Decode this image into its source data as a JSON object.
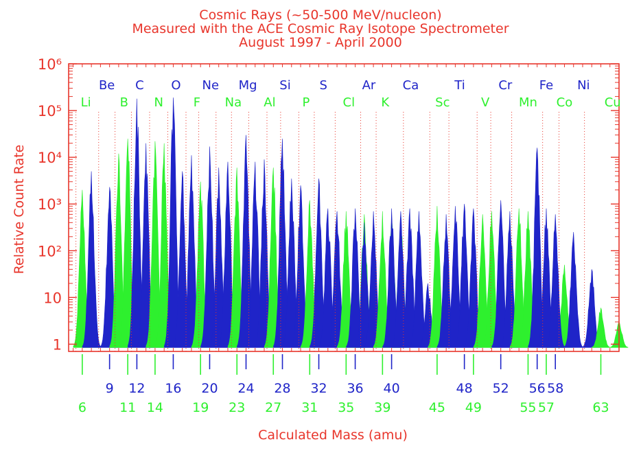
{
  "chart_data": {
    "type": "bar",
    "title_lines": [
      "Cosmic Rays (~50-500 MeV/nucleon)",
      "Measured with the ACE Cosmic Ray Isotope Spectrometer",
      "August 1997 - April 2000"
    ],
    "xlabel": "Calculated Mass (amu)",
    "ylabel": "Relative Count Rate",
    "xlim": [
      4.5,
      65
    ],
    "ylim": [
      0.7,
      1000000
    ],
    "y_scale": "log",
    "y_ticks": [
      {
        "value": 1,
        "label": "1"
      },
      {
        "value": 10,
        "label": "10"
      },
      {
        "value": 100,
        "label": "10²"
      },
      {
        "value": 1000,
        "label": "10³"
      },
      {
        "value": 10000,
        "label": "10⁴"
      },
      {
        "value": 100000,
        "label": "10⁵"
      },
      {
        "value": 1000000,
        "label": "10⁶"
      }
    ],
    "colors": {
      "axis": "#e8352b",
      "blue": "#1f24c8",
      "green": "#2ef02e",
      "divider": "#e8352b"
    },
    "dividers": [
      5.3,
      7.8,
      9.6,
      11.4,
      13.4,
      15.4,
      17.4,
      18.8,
      20.7,
      22.4,
      24.3,
      26.3,
      27.8,
      29.8,
      31.5,
      33.8,
      36.6,
      38.3,
      41.3,
      44.2,
      46.3,
      49.4,
      50.9,
      53.2,
      56.6,
      58.4,
      61.2
    ],
    "x_ticks_blue": [
      {
        "value": 9,
        "label": "9"
      },
      {
        "value": 12,
        "label": "12"
      },
      {
        "value": 16,
        "label": "16"
      },
      {
        "value": 20,
        "label": "20"
      },
      {
        "value": 24,
        "label": "24"
      },
      {
        "value": 28,
        "label": "28"
      },
      {
        "value": 32,
        "label": "32"
      },
      {
        "value": 36,
        "label": "36"
      },
      {
        "value": 40,
        "label": "40"
      },
      {
        "value": 48,
        "label": "48"
      },
      {
        "value": 52,
        "label": "52"
      },
      {
        "value": 56,
        "label": "56"
      },
      {
        "value": 58,
        "label": "58"
      }
    ],
    "x_ticks_green": [
      {
        "value": 6,
        "label": "6"
      },
      {
        "value": 11,
        "label": "11"
      },
      {
        "value": 14,
        "label": "14"
      },
      {
        "value": 19,
        "label": "19"
      },
      {
        "value": 23,
        "label": "23"
      },
      {
        "value": 27,
        "label": "27"
      },
      {
        "value": 31,
        "label": "31"
      },
      {
        "value": 35,
        "label": "35"
      },
      {
        "value": 39,
        "label": "39"
      },
      {
        "value": 45,
        "label": "45"
      },
      {
        "value": 49,
        "label": "49"
      },
      {
        "value": 55,
        "label": "55"
      },
      {
        "value": 57,
        "label": "57"
      },
      {
        "value": 63,
        "label": "63"
      }
    ],
    "elements": [
      {
        "symbol": "Li",
        "color": "green",
        "label_mass": 6.4,
        "row": 2,
        "isotopes": [
          {
            "mass": 6,
            "peak": 2000
          },
          {
            "mass": 7,
            "peak": 1800
          }
        ]
      },
      {
        "symbol": "Be",
        "color": "blue",
        "label_mass": 8.7,
        "row": 1,
        "isotopes": [
          {
            "mass": 7,
            "peak": 5000
          },
          {
            "mass": 9,
            "peak": 2300
          },
          {
            "mass": 10,
            "peak": 500
          }
        ]
      },
      {
        "symbol": "B",
        "color": "green",
        "label_mass": 10.6,
        "row": 2,
        "isotopes": [
          {
            "mass": 10,
            "peak": 12000
          },
          {
            "mass": 11,
            "peak": 25000
          }
        ]
      },
      {
        "symbol": "C",
        "color": "blue",
        "label_mass": 12.3,
        "row": 1,
        "isotopes": [
          {
            "mass": 12,
            "peak": 180000
          },
          {
            "mass": 13,
            "peak": 20000
          },
          {
            "mass": 14,
            "peak": 1200
          }
        ]
      },
      {
        "symbol": "N",
        "color": "green",
        "label_mass": 14.4,
        "row": 2,
        "isotopes": [
          {
            "mass": 14,
            "peak": 22000
          },
          {
            "mass": 15,
            "peak": 20000
          }
        ]
      },
      {
        "symbol": "O",
        "color": "blue",
        "label_mass": 16.3,
        "row": 1,
        "isotopes": [
          {
            "mass": 16,
            "peak": 190000
          },
          {
            "mass": 17,
            "peak": 5000
          },
          {
            "mass": 18,
            "peak": 11000
          }
        ]
      },
      {
        "symbol": "F",
        "color": "green",
        "label_mass": 18.6,
        "row": 2,
        "isotopes": [
          {
            "mass": 19,
            "peak": 3000
          }
        ]
      },
      {
        "symbol": "Ne",
        "color": "blue",
        "label_mass": 20.1,
        "row": 1,
        "isotopes": [
          {
            "mass": 20,
            "peak": 17000
          },
          {
            "mass": 21,
            "peak": 6000
          },
          {
            "mass": 22,
            "peak": 8000
          }
        ]
      },
      {
        "symbol": "Na",
        "color": "green",
        "label_mass": 22.6,
        "row": 2,
        "isotopes": [
          {
            "mass": 23,
            "peak": 6000
          }
        ]
      },
      {
        "symbol": "Mg",
        "color": "blue",
        "label_mass": 24.2,
        "row": 1,
        "isotopes": [
          {
            "mass": 24,
            "peak": 30000
          },
          {
            "mass": 25,
            "peak": 8000
          },
          {
            "mass": 26,
            "peak": 9000
          }
        ]
      },
      {
        "symbol": "Al",
        "color": "green",
        "label_mass": 26.6,
        "row": 2,
        "isotopes": [
          {
            "mass": 27,
            "peak": 6000
          }
        ]
      },
      {
        "symbol": "Si",
        "color": "blue",
        "label_mass": 28.3,
        "row": 1,
        "isotopes": [
          {
            "mass": 28,
            "peak": 25000
          },
          {
            "mass": 29,
            "peak": 3500
          },
          {
            "mass": 30,
            "peak": 2500
          }
        ]
      },
      {
        "symbol": "P",
        "color": "green",
        "label_mass": 30.6,
        "row": 2,
        "isotopes": [
          {
            "mass": 31,
            "peak": 1200
          }
        ]
      },
      {
        "symbol": "S",
        "color": "blue",
        "label_mass": 32.5,
        "row": 1,
        "isotopes": [
          {
            "mass": 32,
            "peak": 3500
          },
          {
            "mass": 33,
            "peak": 800
          },
          {
            "mass": 34,
            "peak": 700
          }
        ]
      },
      {
        "symbol": "Cl",
        "color": "green",
        "label_mass": 35.3,
        "row": 2,
        "isotopes": [
          {
            "mass": 35,
            "peak": 700
          },
          {
            "mass": 36,
            "peak": 300
          },
          {
            "mass": 37,
            "peak": 600
          }
        ]
      },
      {
        "symbol": "Ar",
        "color": "blue",
        "label_mass": 37.5,
        "row": 1,
        "isotopes": [
          {
            "mass": 36,
            "peak": 800
          },
          {
            "mass": 37,
            "peak": 400
          },
          {
            "mass": 38,
            "peak": 700
          }
        ]
      },
      {
        "symbol": "K",
        "color": "green",
        "label_mass": 39.3,
        "row": 2,
        "isotopes": [
          {
            "mass": 39,
            "peak": 700
          },
          {
            "mass": 40,
            "peak": 500
          },
          {
            "mass": 41,
            "peak": 400
          }
        ]
      },
      {
        "symbol": "Ca",
        "color": "blue",
        "label_mass": 42.1,
        "row": 1,
        "isotopes": [
          {
            "mass": 40,
            "peak": 800
          },
          {
            "mass": 41,
            "peak": 700
          },
          {
            "mass": 42,
            "peak": 800
          },
          {
            "mass": 43,
            "peak": 700
          },
          {
            "mass": 44,
            "peak": 20
          }
        ]
      },
      {
        "symbol": "Sc",
        "color": "green",
        "label_mass": 45.6,
        "row": 2,
        "isotopes": [
          {
            "mass": 45,
            "peak": 900
          }
        ]
      },
      {
        "symbol": "Ti",
        "color": "blue",
        "label_mass": 47.5,
        "row": 1,
        "isotopes": [
          {
            "mass": 46,
            "peak": 600
          },
          {
            "mass": 47,
            "peak": 900
          },
          {
            "mass": 48,
            "peak": 1000
          },
          {
            "mass": 49,
            "peak": 800
          }
        ]
      },
      {
        "symbol": "V",
        "color": "green",
        "label_mass": 50.3,
        "row": 2,
        "isotopes": [
          {
            "mass": 50,
            "peak": 600
          },
          {
            "mass": 51,
            "peak": 700
          }
        ]
      },
      {
        "symbol": "Cr",
        "color": "blue",
        "label_mass": 52.5,
        "row": 1,
        "isotopes": [
          {
            "mass": 52,
            "peak": 1200
          },
          {
            "mass": 53,
            "peak": 700
          },
          {
            "mass": 54,
            "peak": 300
          }
        ]
      },
      {
        "symbol": "Mn",
        "color": "green",
        "label_mass": 55.0,
        "row": 2,
        "isotopes": [
          {
            "mass": 54,
            "peak": 800
          },
          {
            "mass": 55,
            "peak": 700
          }
        ]
      },
      {
        "symbol": "Fe",
        "color": "blue",
        "label_mass": 57.0,
        "row": 1,
        "isotopes": [
          {
            "mass": 56,
            "peak": 16000
          },
          {
            "mass": 57,
            "peak": 800
          },
          {
            "mass": 58,
            "peak": 150
          }
        ]
      },
      {
        "symbol": "Co",
        "color": "green",
        "label_mass": 59.0,
        "row": 2,
        "isotopes": [
          {
            "mass": 58,
            "peak": 55
          },
          {
            "mass": 59,
            "peak": 50
          }
        ]
      },
      {
        "symbol": "Ni",
        "color": "blue",
        "label_mass": 61.1,
        "row": 1,
        "isotopes": [
          {
            "mass": 58,
            "peak": 600
          },
          {
            "mass": 60,
            "peak": 250
          },
          {
            "mass": 62,
            "peak": 40
          }
        ]
      },
      {
        "symbol": "Cu",
        "color": "green",
        "label_mass": 64.3,
        "row": 2,
        "isotopes": [
          {
            "mass": 63,
            "peak": 6
          },
          {
            "mass": 65,
            "peak": 3
          }
        ]
      }
    ]
  }
}
